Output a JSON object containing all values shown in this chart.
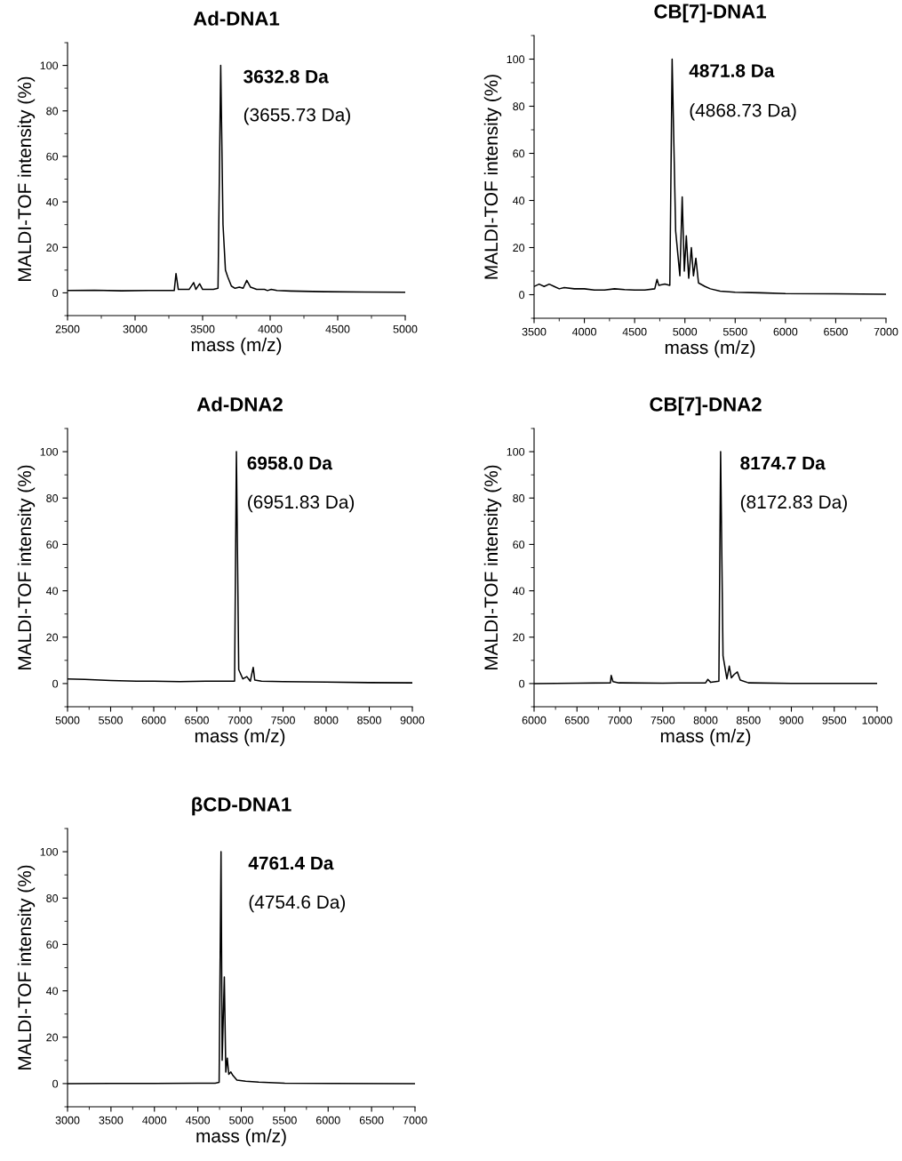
{
  "chart_data": [
    {
      "type": "line",
      "title": "Ad-DNA1",
      "xlabel": "mass (m/z)",
      "ylabel": "MALDI-TOF intensity (%)",
      "xlim": [
        2500,
        5000
      ],
      "ylim": [
        -10,
        110
      ],
      "xticks": [
        2500,
        3000,
        3500,
        4000,
        4500,
        5000
      ],
      "yticks": [
        0,
        20,
        40,
        60,
        80,
        100
      ],
      "annotations": [
        "3632.8 Da",
        "(3655.73 Da)"
      ],
      "series": [
        {
          "color": "#000000",
          "x": [
            2500,
            2700,
            2900,
            3100,
            3290,
            3303,
            3320,
            3400,
            3434,
            3450,
            3478,
            3500,
            3580,
            3614,
            3634,
            3651,
            3669,
            3686,
            3713,
            3740,
            3772,
            3800,
            3827,
            3855,
            3900,
            3958,
            3980,
            4008,
            4050,
            4151,
            4400,
            4700,
            5000
          ],
          "values": [
            1,
            1.1,
            0.9,
            1,
            1,
            8.5,
            1.5,
            1.5,
            4.5,
            1.5,
            4,
            1.5,
            1.5,
            2,
            100,
            30,
            10,
            7,
            3,
            2,
            2.5,
            2,
            5.5,
            2.5,
            1.5,
            1.5,
            1,
            1.5,
            1,
            0.8,
            0.5,
            0.4,
            0.3
          ]
        }
      ]
    },
    {
      "type": "line",
      "title": "CB[7]-DNA1",
      "xlabel": "mass (m/z)",
      "ylabel": "MALDI-TOF intensity (%)",
      "xlim": [
        3500,
        7000
      ],
      "ylim": [
        -10,
        110
      ],
      "xticks": [
        3500,
        4000,
        4500,
        5000,
        5500,
        6000,
        6500,
        7000
      ],
      "yticks": [
        0,
        20,
        40,
        60,
        80,
        100
      ],
      "annotations": [
        "4871.8 Da",
        "(4868.73 Da)"
      ],
      "series": [
        {
          "color": "#000000",
          "x": [
            3500,
            3550,
            3600,
            3650,
            3700,
            3750,
            3800,
            3900,
            4000,
            4100,
            4200,
            4300,
            4400,
            4500,
            4600,
            4700,
            4723,
            4740,
            4800,
            4850,
            4873,
            4908,
            4950,
            4973,
            4994,
            5014,
            5038,
            5064,
            5085,
            5109,
            5135,
            5200,
            5253,
            5350,
            5500,
            5750,
            6000,
            6500,
            7000
          ],
          "values": [
            3.5,
            4.5,
            3.5,
            4.5,
            3.5,
            2.5,
            3,
            2.5,
            2.5,
            2,
            2,
            2.5,
            2.2,
            2,
            2,
            2.5,
            6.5,
            4,
            4.5,
            4,
            100,
            27,
            8,
            41.5,
            10,
            25,
            7,
            20,
            8,
            15.5,
            5,
            3.5,
            2.5,
            1.5,
            1,
            0.8,
            0.5,
            0.4,
            0.2
          ]
        }
      ]
    },
    {
      "type": "line",
      "title": "Ad-DNA2",
      "xlabel": "mass (m/z)",
      "ylabel": "MALDI-TOF intensity (%)",
      "xlim": [
        5000,
        9000
      ],
      "ylim": [
        -10,
        110
      ],
      "xticks": [
        5000,
        5500,
        6000,
        6500,
        7000,
        7500,
        8000,
        8500,
        9000
      ],
      "yticks": [
        0,
        20,
        40,
        60,
        80,
        100
      ],
      "annotations": [
        "6958.0 Da",
        "(6951.83 Da)"
      ],
      "series": [
        {
          "color": "#000000",
          "x": [
            5000,
            5200,
            5500,
            5800,
            6000,
            6300,
            6600,
            6900,
            6938,
            6959,
            6986,
            7034,
            7080,
            7120,
            7154,
            7172,
            7250,
            7500,
            8000,
            8500,
            9000
          ],
          "values": [
            2,
            1.8,
            1.3,
            1,
            1,
            0.8,
            1,
            1,
            1,
            100,
            6,
            2,
            3,
            1,
            7,
            1.5,
            1,
            0.8,
            0.6,
            0.4,
            0.3
          ]
        }
      ]
    },
    {
      "type": "line",
      "title": "CB[7]-DNA2",
      "xlabel": "mass (m/z)",
      "ylabel": "MALDI-TOF intensity (%)",
      "xlim": [
        6000,
        10000
      ],
      "ylim": [
        -10,
        110
      ],
      "xticks": [
        6000,
        6500,
        7000,
        7500,
        8000,
        8500,
        9000,
        9500,
        10000
      ],
      "yticks": [
        0,
        20,
        40,
        60,
        80,
        100
      ],
      "annotations": [
        "8174.7 Da",
        "(8172.83 Da)"
      ],
      "series": [
        {
          "color": "#000000",
          "x": [
            6000,
            6500,
            6890,
            6899,
            6920,
            6990,
            7500,
            8000,
            8026,
            8060,
            8155,
            8175,
            8203,
            8248,
            8276,
            8300,
            8335,
            8370,
            8404,
            8500,
            9000,
            10000
          ],
          "values": [
            0,
            0.2,
            0.3,
            3.5,
            0.8,
            0.3,
            0.2,
            0.3,
            1.8,
            0.5,
            1,
            100,
            12,
            2,
            7.5,
            2.5,
            4,
            5,
            1.5,
            0.3,
            0.1,
            0.1
          ]
        }
      ]
    },
    {
      "type": "line",
      "title": "βCD-DNA1",
      "xlabel": "mass (m/z)",
      "ylabel": "MALDI-TOF intensity (%)",
      "xlim": [
        3000,
        7000
      ],
      "ylim": [
        -10,
        110
      ],
      "xticks": [
        3000,
        3500,
        4000,
        4500,
        5000,
        5500,
        6000,
        6500,
        7000
      ],
      "yticks": [
        0,
        20,
        40,
        60,
        80,
        100
      ],
      "annotations": [
        "4761.4 Da",
        "(4754.6 Da)"
      ],
      "series": [
        {
          "color": "#000000",
          "x": [
            3000,
            3500,
            4000,
            4500,
            4700,
            4745,
            4767,
            4780,
            4805,
            4822,
            4839,
            4856,
            4880,
            4904,
            4950,
            5050,
            5200,
            5500,
            6000,
            7000
          ],
          "values": [
            0,
            0.1,
            0.1,
            0.2,
            0.2,
            0.5,
            100,
            10,
            46,
            5,
            11,
            4,
            5,
            3.5,
            1.5,
            1,
            0.6,
            0.2,
            0.1,
            0
          ]
        }
      ]
    }
  ]
}
